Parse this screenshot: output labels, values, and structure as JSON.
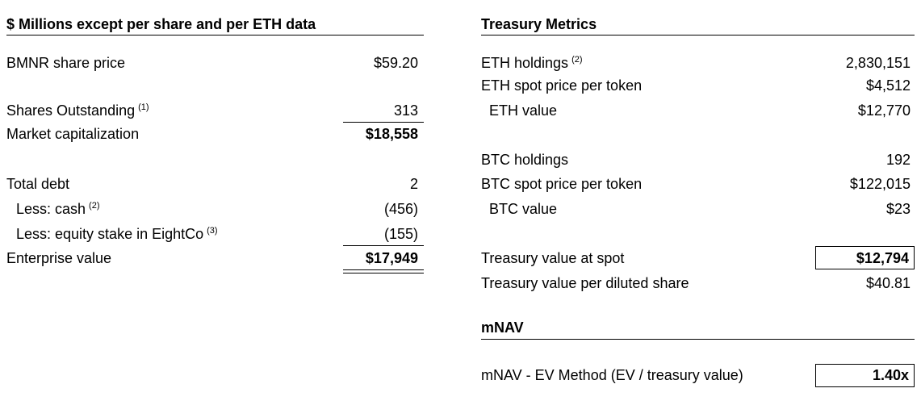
{
  "left": {
    "header": "$ Millions except per share and per ETH data",
    "rows": [
      {
        "label": "BMNR share price",
        "value": "$59.20"
      },
      {
        "label": "Shares Outstanding",
        "note": "(1)",
        "value": "313"
      },
      {
        "label": "Market capitalization",
        "value": "$18,558"
      },
      {
        "label": "Total debt",
        "value": "2"
      },
      {
        "label": "Less: cash",
        "note": "(2)",
        "value": "(456)"
      },
      {
        "label": "Less: equity stake in EightCo",
        "note": "(3)",
        "value": "(155)"
      },
      {
        "label": "Enterprise value",
        "value": "$17,949"
      }
    ]
  },
  "right": {
    "header": "Treasury Metrics",
    "rows": [
      {
        "label": "ETH holdings",
        "note": "(2)",
        "value": "2,830,151"
      },
      {
        "label": "ETH spot price per token",
        "value": "$4,512"
      },
      {
        "label": "ETH value",
        "value": "$12,770"
      },
      {
        "label": "BTC holdings",
        "value": "192"
      },
      {
        "label": "BTC spot price per token",
        "value": "$122,015"
      },
      {
        "label": "BTC value",
        "value": "$23"
      },
      {
        "label": "Treasury value at spot",
        "value": "$12,794"
      },
      {
        "label": "Treasury value per diluted share",
        "value": "$40.81"
      }
    ]
  },
  "mnav": {
    "header": "mNAV",
    "rows": [
      {
        "label": "mNAV - EV Method (EV / treasury value)",
        "value": "1.40x"
      }
    ]
  }
}
